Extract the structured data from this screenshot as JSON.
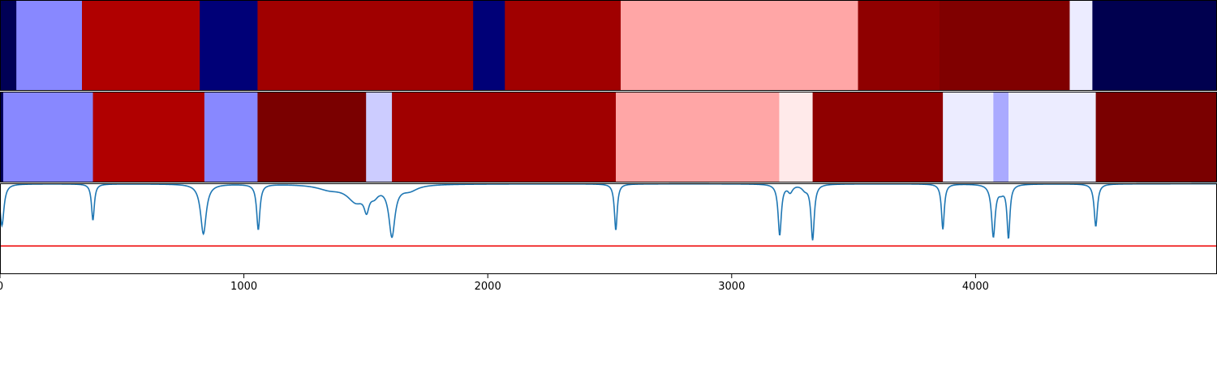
{
  "chart_data": {
    "type": "heatmap",
    "x_range": [
      0,
      4990
    ],
    "x_ticks": [
      0,
      1000,
      2000,
      3000,
      4000
    ],
    "x_tick_labels": [
      "0",
      "1000",
      "2000",
      "3000",
      "4000"
    ],
    "grid": false,
    "legend": "none",
    "panels": [
      {
        "name": "",
        "kind": "segments",
        "segments": [
          {
            "start": 0,
            "end": 67,
            "color": "#000055"
          },
          {
            "start": 67,
            "end": 336,
            "color": "#8888ff"
          },
          {
            "start": 336,
            "end": 819,
            "color": "#b00000"
          },
          {
            "start": 819,
            "end": 1056,
            "color": "#000077"
          },
          {
            "start": 1056,
            "end": 1940,
            "color": "#a00000"
          },
          {
            "start": 1940,
            "end": 2070,
            "color": "#000077"
          },
          {
            "start": 2070,
            "end": 2545,
            "color": "#a00000"
          },
          {
            "start": 2545,
            "end": 3518,
            "color": "#ffa6a6"
          },
          {
            "start": 3518,
            "end": 3852,
            "color": "#8f0000"
          },
          {
            "start": 3852,
            "end": 4386,
            "color": "#800000"
          },
          {
            "start": 4386,
            "end": 4479,
            "color": "#ececff"
          },
          {
            "start": 4479,
            "end": 4990,
            "color": "#00004f"
          }
        ]
      },
      {
        "name": "",
        "kind": "segments",
        "segments": [
          {
            "start": 0,
            "end": 13,
            "color": "#000055"
          },
          {
            "start": 13,
            "end": 381,
            "color": "#8888ff"
          },
          {
            "start": 381,
            "end": 838,
            "color": "#b00000"
          },
          {
            "start": 838,
            "end": 1056,
            "color": "#8888ff"
          },
          {
            "start": 1056,
            "end": 1501,
            "color": "#7a0000"
          },
          {
            "start": 1501,
            "end": 1607,
            "color": "#ccccff"
          },
          {
            "start": 1607,
            "end": 2525,
            "color": "#a00000"
          },
          {
            "start": 2525,
            "end": 3195,
            "color": "#ffa6a6"
          },
          {
            "start": 3195,
            "end": 3332,
            "color": "#ffeaea"
          },
          {
            "start": 3332,
            "end": 3866,
            "color": "#8f0000"
          },
          {
            "start": 3866,
            "end": 4073,
            "color": "#ececff"
          },
          {
            "start": 4073,
            "end": 4135,
            "color": "#aaaaff"
          },
          {
            "start": 4135,
            "end": 4493,
            "color": "#ececff"
          },
          {
            "start": 4493,
            "end": 4990,
            "color": "#7a0000"
          }
        ]
      },
      {
        "name": "",
        "kind": "line",
        "y_range": [
          0,
          1
        ],
        "threshold": 0.31,
        "threshold_color": "#ee0000",
        "line_color": "#1f77b4",
        "baseline": 0.995,
        "dips": [
          {
            "x": 8,
            "depth": 0.46,
            "width": 10
          },
          {
            "x": 381,
            "depth": 0.4,
            "width": 7
          },
          {
            "x": 834,
            "depth": 0.55,
            "width": 14
          },
          {
            "x": 1059,
            "depth": 0.5,
            "width": 8
          },
          {
            "x": 1350,
            "depth": 0.05,
            "width": 60
          },
          {
            "x": 1460,
            "depth": 0.18,
            "width": 45
          },
          {
            "x": 1503,
            "depth": 0.2,
            "width": 12
          },
          {
            "x": 1535,
            "depth": 0.08,
            "width": 20
          },
          {
            "x": 1607,
            "depth": 0.55,
            "width": 15
          },
          {
            "x": 1680,
            "depth": 0.06,
            "width": 40
          },
          {
            "x": 2525,
            "depth": 0.51,
            "width": 7
          },
          {
            "x": 3197,
            "depth": 0.56,
            "width": 8
          },
          {
            "x": 3240,
            "depth": 0.08,
            "width": 12
          },
          {
            "x": 3300,
            "depth": 0.05,
            "width": 15
          },
          {
            "x": 3332,
            "depth": 0.61,
            "width": 8
          },
          {
            "x": 3866,
            "depth": 0.5,
            "width": 7
          },
          {
            "x": 4073,
            "depth": 0.57,
            "width": 9
          },
          {
            "x": 4105,
            "depth": 0.07,
            "width": 15
          },
          {
            "x": 4135,
            "depth": 0.58,
            "width": 7
          },
          {
            "x": 4493,
            "depth": 0.47,
            "width": 8
          }
        ]
      }
    ]
  }
}
